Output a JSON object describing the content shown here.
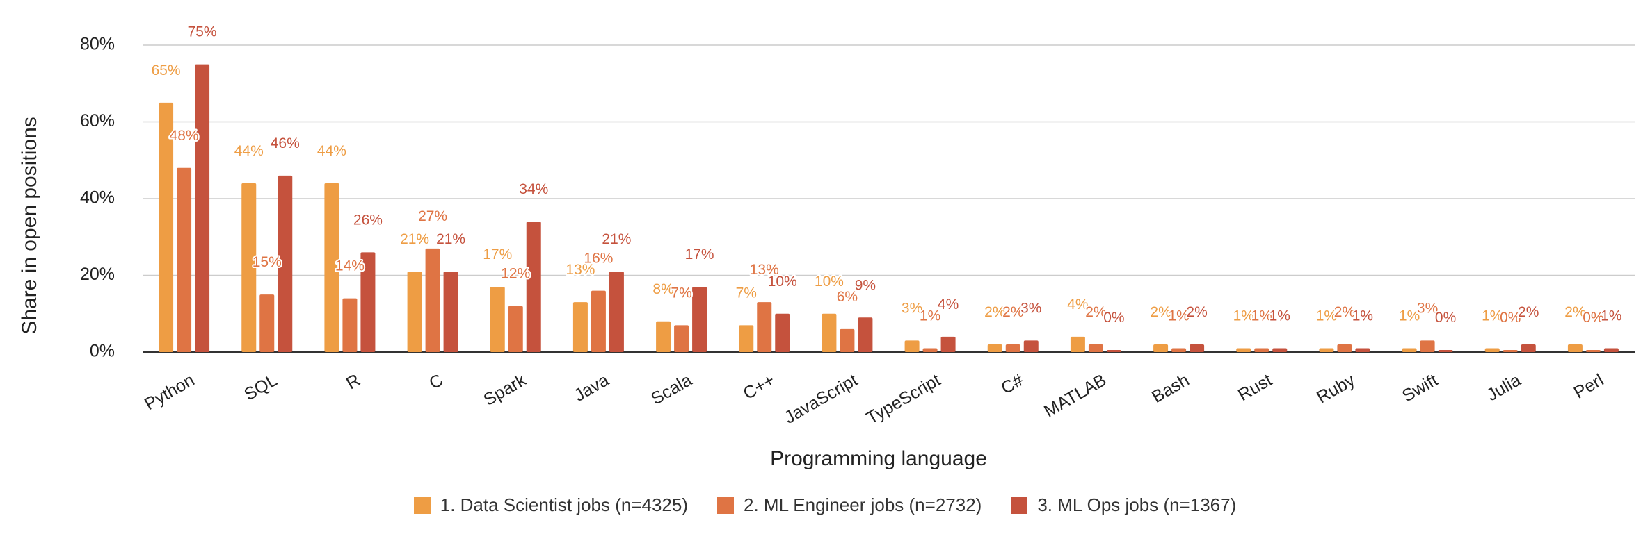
{
  "chart_data": {
    "type": "bar",
    "xlabel": "Programming language",
    "ylabel": "Share in open positions",
    "ylim": [
      0,
      80
    ],
    "yticks": [
      "0%",
      "20%",
      "40%",
      "60%",
      "80%"
    ],
    "grid": true,
    "legend_position": "bottom",
    "categories": [
      "Python",
      "SQL",
      "R",
      "C",
      "Spark",
      "Java",
      "Scala",
      "C++",
      "JavaScript",
      "TypeScript",
      "C#",
      "MATLAB",
      "Bash",
      "Rust",
      "Ruby",
      "Swift",
      "Julia",
      "Perl"
    ],
    "series": [
      {
        "name": "1. Data Scientist jobs (n=4325)",
        "color": "#ee9d44",
        "values": [
          65,
          44,
          44,
          21,
          17,
          13,
          8,
          7,
          10,
          3,
          2,
          4,
          2,
          1,
          1,
          1,
          1,
          2
        ],
        "labels": [
          "65%",
          "44%",
          "44%",
          "21%",
          "17%",
          "13%",
          "8%",
          "7%",
          "10%",
          "3%",
          "2%",
          "4%",
          "2%",
          "1%",
          "1%",
          "1%",
          "1%",
          "2%"
        ]
      },
      {
        "name": "2. ML Engineer jobs (n=2732)",
        "color": "#df7444",
        "values": [
          48,
          15,
          14,
          27,
          12,
          16,
          7,
          13,
          6,
          1,
          2,
          2,
          1,
          1,
          2,
          3,
          0,
          0
        ],
        "labels": [
          "48%",
          "15%",
          "14%",
          "27%",
          "12%",
          "16%",
          "7%",
          "13%",
          "6%",
          "1%",
          "2%",
          "2%",
          "1%",
          "1%",
          "2%",
          "3%",
          "0%",
          "0%"
        ]
      },
      {
        "name": "3. ML Ops jobs (n=1367)",
        "color": "#c5523d",
        "values": [
          75,
          46,
          26,
          21,
          34,
          21,
          17,
          10,
          9,
          4,
          3,
          0,
          2,
          1,
          1,
          0,
          2,
          1
        ],
        "labels": [
          "75%",
          "46%",
          "26%",
          "21%",
          "34%",
          "21%",
          "17%",
          "10%",
          "9%",
          "4%",
          "3%",
          "0%",
          "2%",
          "1%",
          "1%",
          "0%",
          "2%",
          "1%"
        ]
      }
    ]
  }
}
